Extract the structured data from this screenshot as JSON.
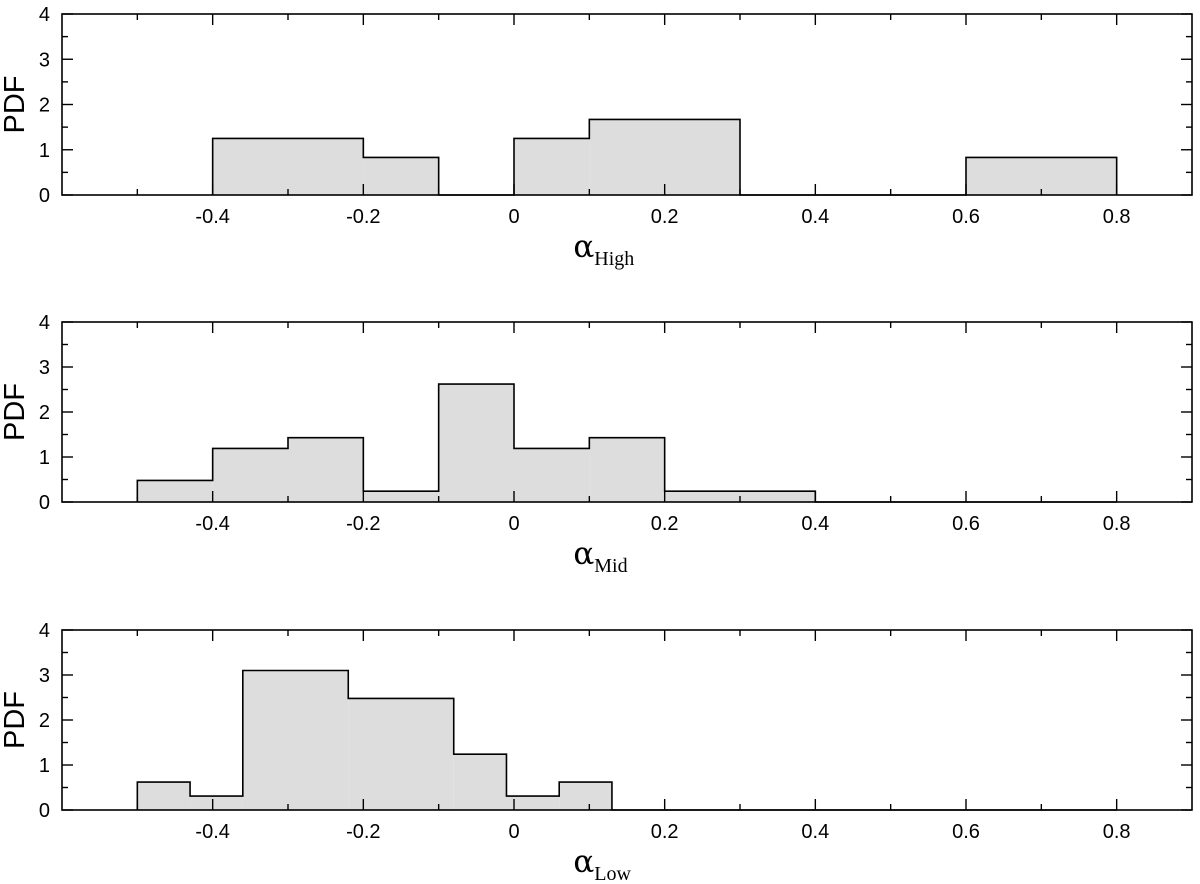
{
  "chart_data": [
    {
      "type": "bar",
      "histogram": true,
      "xlabel": {
        "symbol": "α",
        "subscript": "High"
      },
      "ylabel": "PDF",
      "xlim": [
        -0.6,
        0.9
      ],
      "ylim": [
        0,
        4
      ],
      "xticks": [
        "-0.4",
        "-0.2",
        "0",
        "0.2",
        "0.4",
        "0.6",
        "0.8"
      ],
      "yticks": [
        "0",
        "1",
        "2",
        "3",
        "4"
      ],
      "fill": "#dddddd",
      "bins": [
        {
          "x0": -0.4,
          "x1": -0.2,
          "value": 1.25
        },
        {
          "x0": -0.2,
          "x1": -0.1,
          "value": 0.83
        },
        {
          "x0": -0.1,
          "x1": 0.0,
          "value": 0.0
        },
        {
          "x0": 0.0,
          "x1": 0.1,
          "value": 1.25
        },
        {
          "x0": 0.1,
          "x1": 0.3,
          "value": 1.67
        },
        {
          "x0": 0.3,
          "x1": 0.6,
          "value": 0.0
        },
        {
          "x0": 0.6,
          "x1": 0.8,
          "value": 0.83
        }
      ]
    },
    {
      "type": "bar",
      "histogram": true,
      "xlabel": {
        "symbol": "α",
        "subscript": "Mid"
      },
      "ylabel": "PDF",
      "xlim": [
        -0.6,
        0.9
      ],
      "ylim": [
        0,
        4
      ],
      "xticks": [
        "-0.4",
        "-0.2",
        "0",
        "0.2",
        "0.4",
        "0.6",
        "0.8"
      ],
      "yticks": [
        "0",
        "1",
        "2",
        "3",
        "4"
      ],
      "fill": "#dddddd",
      "bins": [
        {
          "x0": -0.5,
          "x1": -0.4,
          "value": 0.48
        },
        {
          "x0": -0.4,
          "x1": -0.3,
          "value": 1.19
        },
        {
          "x0": -0.3,
          "x1": -0.2,
          "value": 1.43
        },
        {
          "x0": -0.2,
          "x1": -0.1,
          "value": 0.24
        },
        {
          "x0": -0.1,
          "x1": 0.0,
          "value": 2.62
        },
        {
          "x0": 0.0,
          "x1": 0.1,
          "value": 1.19
        },
        {
          "x0": 0.1,
          "x1": 0.2,
          "value": 1.43
        },
        {
          "x0": 0.2,
          "x1": 0.3,
          "value": 0.24
        },
        {
          "x0": 0.3,
          "x1": 0.4,
          "value": 0.24
        },
        {
          "x0": 0.4,
          "x1": 0.8,
          "value": 0.0
        }
      ]
    },
    {
      "type": "bar",
      "histogram": true,
      "xlabel": {
        "symbol": "α",
        "subscript": "Low"
      },
      "ylabel": "PDF",
      "xlim": [
        -0.6,
        0.9
      ],
      "ylim": [
        0,
        4
      ],
      "xticks": [
        "-0.4",
        "-0.2",
        "0",
        "0.2",
        "0.4",
        "0.6",
        "0.8"
      ],
      "yticks": [
        "0",
        "1",
        "2",
        "3",
        "4"
      ],
      "fill": "#dddddd",
      "bins": [
        {
          "x0": -0.5,
          "x1": -0.43,
          "value": 0.62
        },
        {
          "x0": -0.43,
          "x1": -0.36,
          "value": 0.31
        },
        {
          "x0": -0.36,
          "x1": -0.22,
          "value": 3.1
        },
        {
          "x0": -0.22,
          "x1": -0.08,
          "value": 2.48
        },
        {
          "x0": -0.08,
          "x1": -0.01,
          "value": 1.24
        },
        {
          "x0": -0.01,
          "x1": 0.06,
          "value": 0.31
        },
        {
          "x0": 0.06,
          "x1": 0.13,
          "value": 0.62
        },
        {
          "x0": 0.13,
          "x1": 0.8,
          "value": 0.0
        }
      ]
    }
  ]
}
